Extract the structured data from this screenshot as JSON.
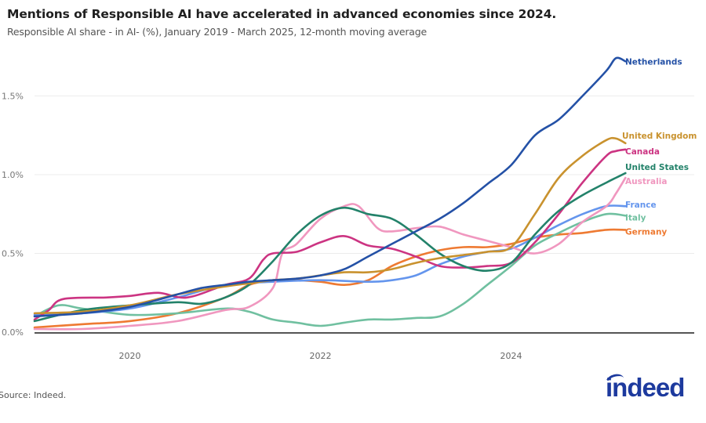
{
  "chart_data": {
    "type": "line",
    "title": "Mentions of Responsible AI have accelerated in advanced economies since 2024.",
    "subtitle": "Responsible AI share - in AI- (%), January 2019 - March 2025, 12-month moving average",
    "xlabel": "",
    "ylabel": "",
    "xlim": [
      2019.0,
      2026.2
    ],
    "ylim": [
      0,
      1.65
    ],
    "x_ticks": [
      2020,
      2022,
      2024
    ],
    "x_tick_labels": [
      "2020",
      "2022",
      "2024"
    ],
    "y_ticks": [
      0,
      0.5,
      1.0,
      1.5
    ],
    "y_tick_labels": [
      "0.0%",
      "0.5%",
      "1.0%",
      "1.5%"
    ],
    "grid": "horizontal",
    "legend": "direct-labels-right",
    "source": "Source: Indeed.",
    "brand": "indeed",
    "series": [
      {
        "name": "Netherlands",
        "color": "#2451a6",
        "x": [
          2019.0,
          2019.5,
          2020.0,
          2020.5,
          2020.75,
          2021.0,
          2021.25,
          2021.5,
          2021.75,
          2022.0,
          2022.25,
          2022.5,
          2022.75,
          2023.0,
          2023.25,
          2023.5,
          2023.75,
          2024.0,
          2024.25,
          2024.5,
          2024.75,
          2025.0,
          2025.1,
          2025.2
        ],
        "y": [
          0.1,
          0.12,
          0.16,
          0.24,
          0.28,
          0.3,
          0.32,
          0.33,
          0.34,
          0.36,
          0.4,
          0.48,
          0.56,
          0.64,
          0.72,
          0.82,
          0.94,
          1.06,
          1.25,
          1.35,
          1.5,
          1.66,
          1.74,
          1.72
        ]
      },
      {
        "name": "United Kingdom",
        "color": "#c9922e",
        "x": [
          2019.0,
          2019.5,
          2020.0,
          2020.5,
          2021.0,
          2021.25,
          2021.5,
          2021.75,
          2022.0,
          2022.25,
          2022.5,
          2022.75,
          2023.0,
          2023.25,
          2023.5,
          2023.75,
          2024.0,
          2024.25,
          2024.5,
          2024.75,
          2025.0,
          2025.1,
          2025.2
        ],
        "y": [
          0.12,
          0.13,
          0.17,
          0.24,
          0.29,
          0.31,
          0.33,
          0.34,
          0.36,
          0.38,
          0.38,
          0.4,
          0.44,
          0.47,
          0.49,
          0.51,
          0.54,
          0.75,
          0.98,
          1.12,
          1.22,
          1.23,
          1.2
        ]
      },
      {
        "name": "Canada",
        "color": "#cc3482",
        "x": [
          2019.0,
          2019.15,
          2019.3,
          2019.75,
          2020.0,
          2020.3,
          2020.6,
          2021.0,
          2021.25,
          2021.4,
          2021.5,
          2021.75,
          2022.0,
          2022.25,
          2022.5,
          2022.75,
          2023.0,
          2023.25,
          2023.5,
          2023.75,
          2024.0,
          2024.25,
          2024.5,
          2024.75,
          2025.0,
          2025.1,
          2025.2
        ],
        "y": [
          0.08,
          0.14,
          0.21,
          0.22,
          0.23,
          0.25,
          0.22,
          0.3,
          0.34,
          0.46,
          0.5,
          0.51,
          0.57,
          0.61,
          0.55,
          0.53,
          0.48,
          0.42,
          0.41,
          0.42,
          0.44,
          0.57,
          0.75,
          0.95,
          1.12,
          1.15,
          1.16
        ]
      },
      {
        "name": "United States",
        "color": "#23826a",
        "x": [
          2019.0,
          2019.5,
          2020.0,
          2020.5,
          2020.75,
          2021.0,
          2021.25,
          2021.5,
          2021.75,
          2022.0,
          2022.25,
          2022.5,
          2022.75,
          2023.0,
          2023.25,
          2023.5,
          2023.75,
          2024.0,
          2024.25,
          2024.5,
          2024.75,
          2025.0,
          2025.1,
          2025.2
        ],
        "y": [
          0.07,
          0.14,
          0.17,
          0.19,
          0.18,
          0.22,
          0.3,
          0.45,
          0.62,
          0.74,
          0.79,
          0.75,
          0.72,
          0.62,
          0.5,
          0.42,
          0.39,
          0.44,
          0.62,
          0.77,
          0.87,
          0.95,
          0.98,
          1.01
        ]
      },
      {
        "name": "Australia",
        "color": "#f097bf",
        "x": [
          2019.0,
          2019.5,
          2020.0,
          2020.5,
          2021.0,
          2021.25,
          2021.5,
          2021.6,
          2021.75,
          2022.0,
          2022.25,
          2022.4,
          2022.6,
          2022.75,
          2023.0,
          2023.25,
          2023.5,
          2023.75,
          2024.0,
          2024.25,
          2024.5,
          2024.75,
          2025.0,
          2025.1,
          2025.2
        ],
        "y": [
          0.02,
          0.02,
          0.04,
          0.07,
          0.14,
          0.16,
          0.28,
          0.5,
          0.56,
          0.72,
          0.8,
          0.8,
          0.66,
          0.64,
          0.66,
          0.67,
          0.62,
          0.58,
          0.54,
          0.5,
          0.56,
          0.7,
          0.8,
          0.88,
          0.98
        ]
      },
      {
        "name": "France",
        "color": "#6495ed",
        "x": [
          2019.0,
          2019.5,
          2020.0,
          2020.5,
          2021.0,
          2021.5,
          2022.0,
          2022.5,
          2022.75,
          2023.0,
          2023.25,
          2023.5,
          2023.75,
          2024.0,
          2024.25,
          2024.5,
          2024.75,
          2025.0,
          2025.2
        ],
        "y": [
          0.11,
          0.12,
          0.15,
          0.22,
          0.3,
          0.32,
          0.33,
          0.32,
          0.33,
          0.36,
          0.43,
          0.48,
          0.51,
          0.53,
          0.6,
          0.68,
          0.75,
          0.8,
          0.8
        ]
      },
      {
        "name": "Italy",
        "color": "#70c0a0",
        "x": [
          2019.0,
          2019.25,
          2019.5,
          2020.0,
          2020.5,
          2021.0,
          2021.25,
          2021.5,
          2021.75,
          2022.0,
          2022.25,
          2022.5,
          2022.75,
          2023.0,
          2023.25,
          2023.5,
          2023.75,
          2024.0,
          2024.25,
          2024.5,
          2024.75,
          2025.0,
          2025.2
        ],
        "y": [
          0.1,
          0.17,
          0.15,
          0.11,
          0.12,
          0.15,
          0.13,
          0.08,
          0.06,
          0.04,
          0.06,
          0.08,
          0.08,
          0.09,
          0.1,
          0.18,
          0.3,
          0.42,
          0.55,
          0.63,
          0.7,
          0.75,
          0.74
        ]
      },
      {
        "name": "Germany",
        "color": "#ee7a32",
        "x": [
          2019.0,
          2019.5,
          2020.0,
          2020.5,
          2021.0,
          2021.25,
          2021.5,
          2021.75,
          2022.0,
          2022.25,
          2022.5,
          2022.75,
          2023.0,
          2023.25,
          2023.5,
          2023.75,
          2024.0,
          2024.25,
          2024.5,
          2024.75,
          2025.0,
          2025.2
        ],
        "y": [
          0.03,
          0.05,
          0.07,
          0.12,
          0.22,
          0.3,
          0.33,
          0.33,
          0.32,
          0.3,
          0.33,
          0.42,
          0.48,
          0.52,
          0.54,
          0.54,
          0.56,
          0.6,
          0.62,
          0.63,
          0.65,
          0.65
        ]
      }
    ],
    "label_y_override": {
      "Netherlands": 1.72,
      "United Kingdom": 1.25,
      "Canada": 1.15,
      "United States": 1.05,
      "Australia": 0.96,
      "France": 0.81,
      "Italy": 0.73,
      "Germany": 0.64
    }
  }
}
